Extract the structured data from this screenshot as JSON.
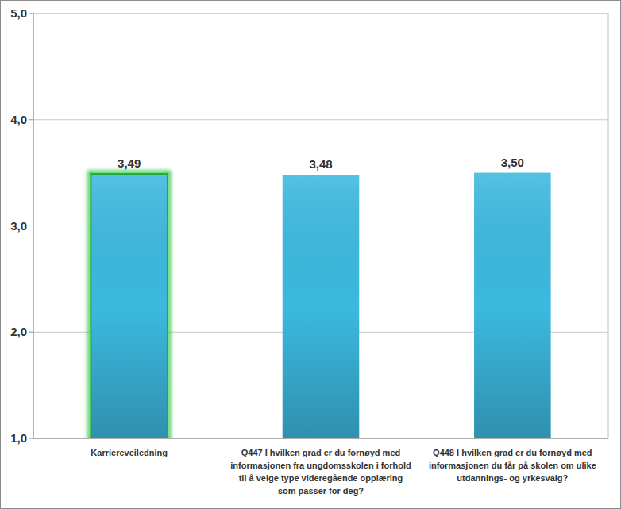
{
  "chart_data": {
    "type": "bar",
    "categories": [
      "Karriereveiledning",
      "Q447 I hvilken grad er du fornøyd med informasjonen fra ungdomsskolen i forhold til å velge type videregående opplæring som passer for deg?",
      "Q448 I hvilken grad er du fornøyd med informasjonen du får på skolen om ulike utdannings- og yrkesvalg?"
    ],
    "values": [
      3.49,
      3.48,
      3.5
    ],
    "value_labels": [
      "3,49",
      "3,48",
      "3,50"
    ],
    "data_labels": true,
    "color": "#3cb9df",
    "ylim": [
      1,
      5
    ],
    "yticks": [
      {
        "value": 1,
        "label": "1,0"
      },
      {
        "value": 2,
        "label": "2,0"
      },
      {
        "value": 3,
        "label": "3,0"
      },
      {
        "value": 4,
        "label": "4,0"
      },
      {
        "value": 5,
        "label": "5,0"
      }
    ],
    "grid": true
  }
}
